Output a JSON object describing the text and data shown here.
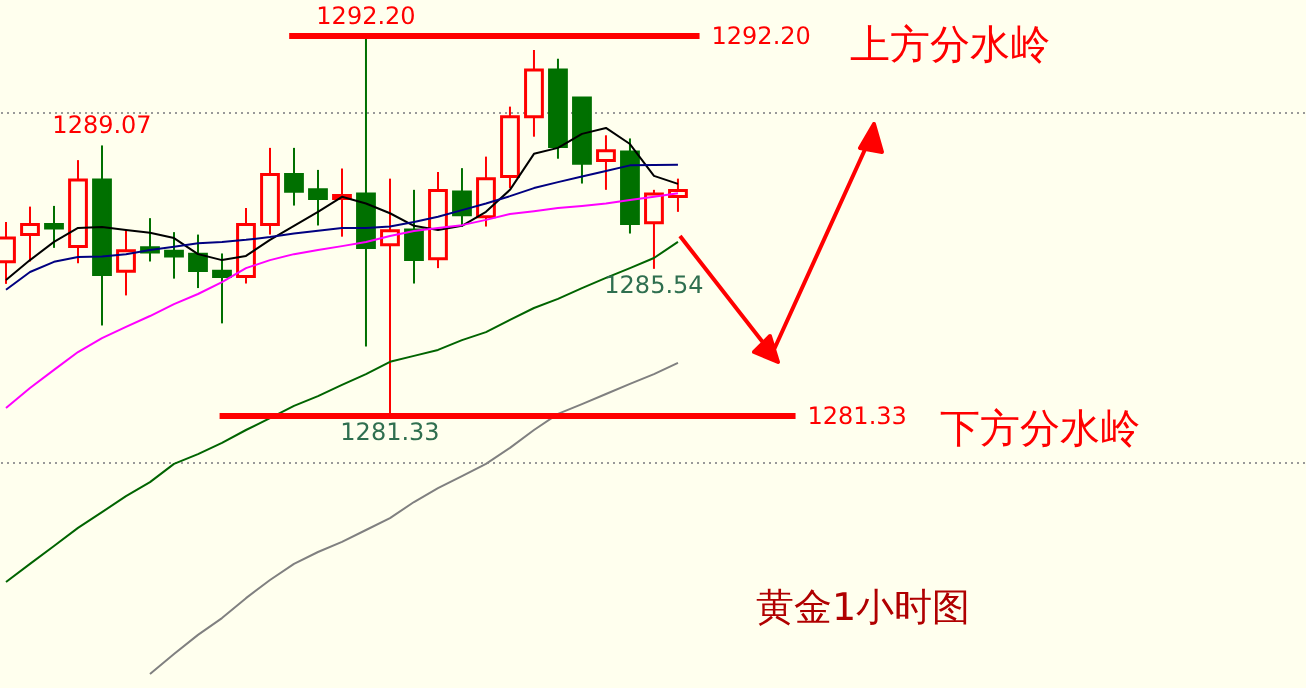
{
  "chart_data": {
    "type": "candlestick",
    "categories": [
      null,
      null,
      null,
      null,
      null,
      null,
      null,
      null,
      null,
      null,
      null,
      null,
      null,
      null,
      null,
      null,
      null,
      null,
      null,
      null,
      null,
      null,
      null,
      null,
      null,
      null,
      null,
      null,
      null
    ],
    "ohlc": [
      [
        1285.74,
        1286.88,
        1285.11,
        1286.42
      ],
      [
        1286.52,
        1287.32,
        1285.75,
        1286.81
      ],
      [
        1286.81,
        1287.34,
        1286.14,
        1286.71
      ],
      [
        1286.18,
        1288.65,
        1285.7,
        1288.08
      ],
      [
        1288.08,
        1289.07,
        1283.92,
        1285.38
      ],
      [
        1285.47,
        1286.65,
        1284.78,
        1286.06
      ],
      [
        1286.14,
        1286.99,
        1285.75,
        1286.02
      ],
      [
        1286.04,
        1286.59,
        1285.26,
        1285.91
      ],
      [
        1285.96,
        1286.52,
        1284.99,
        1285.49
      ],
      [
        1285.47,
        1285.98,
        1283.98,
        1285.32
      ],
      [
        1285.32,
        1287.28,
        1285.12,
        1286.81
      ],
      [
        1286.81,
        1289.0,
        1286.52,
        1288.24
      ],
      [
        1288.24,
        1289.0,
        1287.35,
        1287.76
      ],
      [
        1287.8,
        1288.37,
        1286.78,
        1287.55
      ],
      [
        1287.55,
        1288.41,
        1286.46,
        1287.64
      ],
      [
        1287.68,
        1292.2,
        1283.32,
        1286.15
      ],
      [
        1286.23,
        1288.12,
        1281.33,
        1286.63
      ],
      [
        1286.65,
        1287.8,
        1285.12,
        1285.81
      ],
      [
        1285.83,
        1288.31,
        1285.56,
        1287.78
      ],
      [
        1287.74,
        1288.42,
        1286.75,
        1287.09
      ],
      [
        1287.03,
        1288.75,
        1286.75,
        1288.12
      ],
      [
        1288.18,
        1290.18,
        1287.85,
        1289.89
      ],
      [
        1289.89,
        1291.8,
        1289.32,
        1291.23
      ],
      [
        1291.23,
        1291.55,
        1288.69,
        1289.04
      ],
      [
        1290.43,
        1290.43,
        1287.98,
        1288.56
      ],
      [
        1288.64,
        1289.36,
        1287.8,
        1288.92
      ],
      [
        1288.88,
        1289.27,
        1286.55,
        1286.84
      ],
      [
        1286.86,
        1287.8,
        1285.54,
        1287.68
      ],
      [
        1287.61,
        1288.12,
        1287.17,
        1287.78
      ]
    ],
    "colors": [
      "#ff0000",
      "#ff0000",
      "#007000",
      "#ff0000",
      "#007000",
      "#ff0000",
      "#007000",
      "#007000",
      "#007000",
      "#007000",
      "#ff0000",
      "#ff0000",
      "#007000",
      "#007000",
      "#ff0000",
      "#007000",
      "#ff0000",
      "#007000",
      "#ff0000",
      "#007000",
      "#ff0000",
      "#ff0000",
      "#ff0000",
      "#007000",
      "#007000",
      "#ff0000",
      "#007000",
      "#ff0000",
      "#ff0000"
    ],
    "series": [
      {
        "type": "line",
        "color": "#000000",
        "values": [
          1285.22,
          1285.79,
          1286.31,
          1286.71,
          1286.74,
          1286.65,
          1286.57,
          1286.42,
          1285.96,
          1285.79,
          1285.91,
          1286.37,
          1286.77,
          1287.17,
          1287.6,
          1287.41,
          1287.13,
          1286.77,
          1286.65,
          1286.77,
          1287.17,
          1287.8,
          1288.83,
          1289.0,
          1289.4,
          1289.57,
          1289.11,
          1288.2,
          1287.97
        ]
      },
      {
        "type": "line",
        "color": "#000080",
        "values": [
          1284.94,
          1285.45,
          1285.74,
          1285.88,
          1285.89,
          1285.96,
          1286.08,
          1286.17,
          1286.27,
          1286.31,
          1286.37,
          1286.45,
          1286.55,
          1286.63,
          1286.71,
          1286.71,
          1286.75,
          1286.88,
          1287.03,
          1287.22,
          1287.41,
          1287.62,
          1287.85,
          1288.02,
          1288.18,
          1288.34,
          1288.5,
          1288.51,
          1288.52
        ]
      },
      {
        "type": "line",
        "color": "#ff00ff",
        "values": [
          1281.56,
          1282.13,
          1282.65,
          1283.16,
          1283.56,
          1283.88,
          1284.19,
          1284.53,
          1284.82,
          1285.16,
          1285.56,
          1285.79,
          1285.96,
          1286.08,
          1286.19,
          1286.31,
          1286.48,
          1286.62,
          1286.71,
          1286.79,
          1286.94,
          1287.11,
          1287.19,
          1287.28,
          1287.34,
          1287.41,
          1287.51,
          1287.6,
          1287.7
        ]
      },
      {
        "type": "line",
        "color": "#006400",
        "values": [
          1276.58,
          1277.1,
          1277.61,
          1278.13,
          1278.58,
          1279.04,
          1279.44,
          1279.96,
          1280.24,
          1280.56,
          1280.93,
          1281.27,
          1281.62,
          1281.9,
          1282.22,
          1282.53,
          1282.88,
          1283.05,
          1283.22,
          1283.5,
          1283.73,
          1284.08,
          1284.42,
          1284.68,
          1284.99,
          1285.28,
          1285.56,
          1285.85,
          1286.31
        ]
      },
      {
        "type": "line",
        "color": "#808080",
        "values": [
          null,
          null,
          null,
          null,
          null,
          null,
          1273.95,
          1274.52,
          1275.07,
          1275.55,
          1276.12,
          1276.64,
          1277.1,
          1277.44,
          1277.73,
          1278.07,
          1278.41,
          1278.87,
          1279.27,
          1279.61,
          1279.96,
          1280.42,
          1280.93,
          1281.39,
          1281.67,
          1281.96,
          1282.25,
          1282.53,
          1282.85
        ]
      }
    ],
    "ylim": [
      1273.55,
      1293.23
    ],
    "yticks": [
      {
        "value": 1280,
        "label": null
      },
      {
        "value": 1290,
        "label": null
      }
    ],
    "grid": "y",
    "ref_lines": [
      {
        "axis": "y",
        "value": 1292.2,
        "label": "1292.20",
        "color": "#ff0000"
      },
      {
        "axis": "y",
        "value": 1281.33,
        "label": "1281.33",
        "color": "#ff0000"
      }
    ],
    "annotations": [
      {
        "text": "1289.07",
        "y": 1289.07
      },
      {
        "text": "1292.20",
        "y": 1292.2
      },
      {
        "text": "1281.33",
        "y": 1281.33
      },
      {
        "text": "1285.54",
        "y": 1285.54
      },
      "上方分水岭",
      "下方分水岭",
      "黄金1小时图"
    ]
  }
}
